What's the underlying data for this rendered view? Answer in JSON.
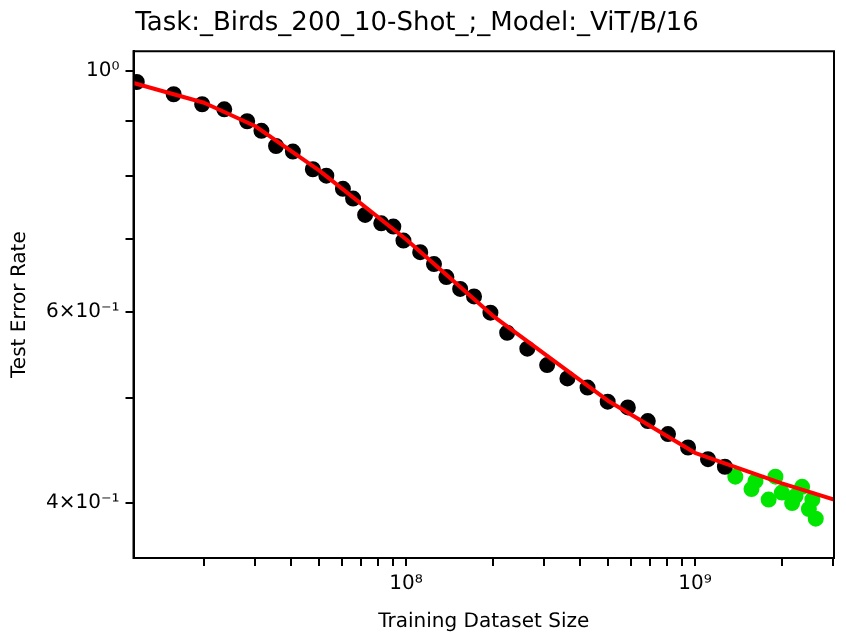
{
  "chart_data": {
    "type": "scatter",
    "title": "Task:_Birds_200_10-Shot_;_Model:_ViT/B/16",
    "xlabel": "Training Dataset Size",
    "ylabel": "Test Error Rate",
    "log": "xy",
    "grid": false,
    "legend": false,
    "marker": "circle",
    "xlim": [
      11400000.0,
      3030000000.0
    ],
    "ylim": [
      0.356,
      1.043
    ],
    "xticks": [
      {
        "value": 20000000.0,
        "label": null
      },
      {
        "value": 30000000.0,
        "label": null
      },
      {
        "value": 40000000.0,
        "label": null
      },
      {
        "value": 50000000.0,
        "label": null
      },
      {
        "value": 60000000.0,
        "label": null
      },
      {
        "value": 70000000.0,
        "label": null
      },
      {
        "value": 80000000.0,
        "label": null
      },
      {
        "value": 90000000.0,
        "label": null
      },
      {
        "value": 100000000.0,
        "label": "10⁸"
      },
      {
        "value": 200000000.0,
        "label": null
      },
      {
        "value": 300000000.0,
        "label": null
      },
      {
        "value": 400000000.0,
        "label": null
      },
      {
        "value": 500000000.0,
        "label": null
      },
      {
        "value": 600000000.0,
        "label": null
      },
      {
        "value": 700000000.0,
        "label": null
      },
      {
        "value": 800000000.0,
        "label": null
      },
      {
        "value": 900000000.0,
        "label": null
      },
      {
        "value": 1000000000.0,
        "label": "10⁹"
      },
      {
        "value": 2000000000.0,
        "label": null
      },
      {
        "value": 3000000000.0,
        "label": null
      }
    ],
    "yticks": [
      {
        "value": 0.4,
        "label": "4×10⁻¹"
      },
      {
        "value": 0.5,
        "label": null
      },
      {
        "value": 0.6,
        "label": "6×10⁻¹"
      },
      {
        "value": 0.7,
        "label": null
      },
      {
        "value": 0.8,
        "label": null
      },
      {
        "value": 0.9,
        "label": null
      },
      {
        "value": 1,
        "label": "10⁰"
      }
    ],
    "series": [
      {
        "color": "#000000",
        "x": [
          11700000.0,
          15700000.0,
          19700000.0,
          23500000.0,
          28200000.0,
          31600000.0,
          35500000.0,
          40600000.0,
          47600000.0,
          53000000.0,
          60500000.0,
          65600000.0,
          72200000.0,
          82100000.0,
          90400000.0,
          98000000.0,
          112000000.0,
          125000000.0,
          138000000.0,
          154000000.0,
          172000000.0,
          196000000.0,
          224000000.0,
          263000000.0,
          308000000.0,
          362000000.0,
          425000000.0,
          499000000.0,
          586000000.0,
          687000000.0,
          807000000.0,
          947000000.0,
          1110000000.0,
          1270000000.0
        ],
        "values": [
          0.977,
          0.952,
          0.932,
          0.922,
          0.899,
          0.881,
          0.853,
          0.843,
          0.812,
          0.801,
          0.779,
          0.763,
          0.737,
          0.724,
          0.719,
          0.698,
          0.681,
          0.664,
          0.646,
          0.63,
          0.62,
          0.599,
          0.574,
          0.555,
          0.536,
          0.521,
          0.511,
          0.496,
          0.49,
          0.476,
          0.463,
          0.45,
          0.439,
          0.432
        ]
      },
      {
        "color": "#00e600",
        "x": [
          1380000000.0,
          1570000000.0,
          1620000000.0,
          1800000000.0,
          1900000000.0,
          2000000000.0,
          2170000000.0,
          2230000000.0,
          2350000000.0,
          2480000000.0,
          2550000000.0,
          2620000000.0
        ],
        "values": [
          0.423,
          0.412,
          0.419,
          0.403,
          0.423,
          0.409,
          0.4,
          0.406,
          0.414,
          0.395,
          0.403,
          0.387
        ]
      },
      {
        "type": "line",
        "color": "#ff0000",
        "marker": "none",
        "x": [
          11400000.0,
          20000000.0,
          30000000.0,
          50000000.0,
          100000000.0,
          200000000.0,
          500000000.0,
          1000000000.0,
          2000000000.0,
          3030000000.0
        ],
        "values": [
          0.975,
          0.935,
          0.89,
          0.81,
          0.7,
          0.595,
          0.497,
          0.445,
          0.417,
          0.403
        ]
      }
    ]
  }
}
